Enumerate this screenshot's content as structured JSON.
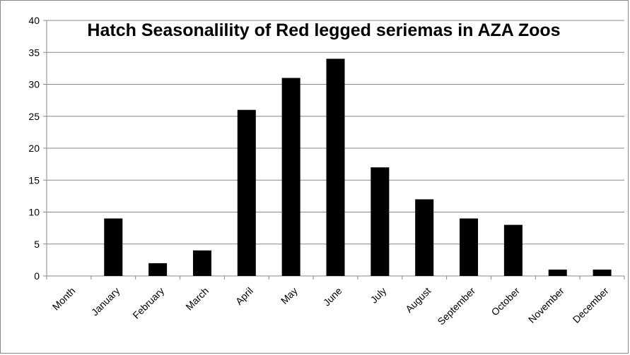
{
  "chart_data": {
    "type": "bar",
    "title": "Hatch Seasonalility of Red legged seriemas in AZA Zoos",
    "xlabel": "",
    "ylabel": "",
    "categories": [
      "Month",
      "January",
      "February",
      "March",
      "April",
      "May",
      "June",
      "July",
      "August",
      "September",
      "October",
      "November",
      "December"
    ],
    "values": [
      0,
      9,
      2,
      4,
      26,
      31,
      34,
      17,
      12,
      9,
      8,
      1,
      1
    ],
    "ylim": [
      0,
      40
    ],
    "yticks": [
      0,
      5,
      10,
      15,
      20,
      25,
      30,
      35,
      40
    ],
    "grid": true,
    "legend": "none",
    "colors": {
      "bar": "#000000",
      "grid": "#888888",
      "axis": "#888888"
    }
  }
}
